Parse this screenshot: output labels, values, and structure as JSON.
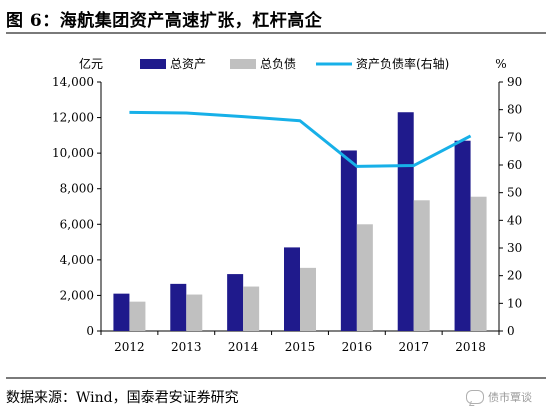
{
  "figure": {
    "title": "图 6：海航集团资产高速扩张，杠杆高企",
    "source": "数据来源：Wind，国泰君安证券研究",
    "watermark": "债市覃谈"
  },
  "chart_data": {
    "type": "bar",
    "categories": [
      "2012",
      "2013",
      "2014",
      "2015",
      "2016",
      "2017",
      "2018"
    ],
    "series": [
      {
        "name": "总资产",
        "kind": "bar",
        "axis": "left",
        "color": "#1f1a8c",
        "values": [
          2100,
          2650,
          3200,
          4700,
          10150,
          12300,
          10700
        ]
      },
      {
        "name": "总负债",
        "kind": "bar",
        "axis": "left",
        "color": "#c0c0c0",
        "values": [
          1650,
          2050,
          2500,
          3550,
          6000,
          7350,
          7550
        ]
      },
      {
        "name": "资产负债率(右轴)",
        "kind": "line",
        "axis": "right",
        "color": "#17b0e8",
        "values": [
          79,
          78.8,
          77.5,
          76,
          59.5,
          59.8,
          70.5
        ]
      }
    ],
    "left_axis": {
      "unit": "亿元",
      "ylim": [
        0,
        14000
      ],
      "ticks": [
        "0",
        "2,000",
        "4,000",
        "6,000",
        "8,000",
        "10,000",
        "12,000",
        "14,000"
      ]
    },
    "right_axis": {
      "unit": "%",
      "ylim": [
        0,
        90
      ],
      "ticks": [
        "0",
        "10",
        "20",
        "30",
        "40",
        "50",
        "60",
        "70",
        "80",
        "90"
      ]
    },
    "legend_position": "top",
    "grid": false
  }
}
